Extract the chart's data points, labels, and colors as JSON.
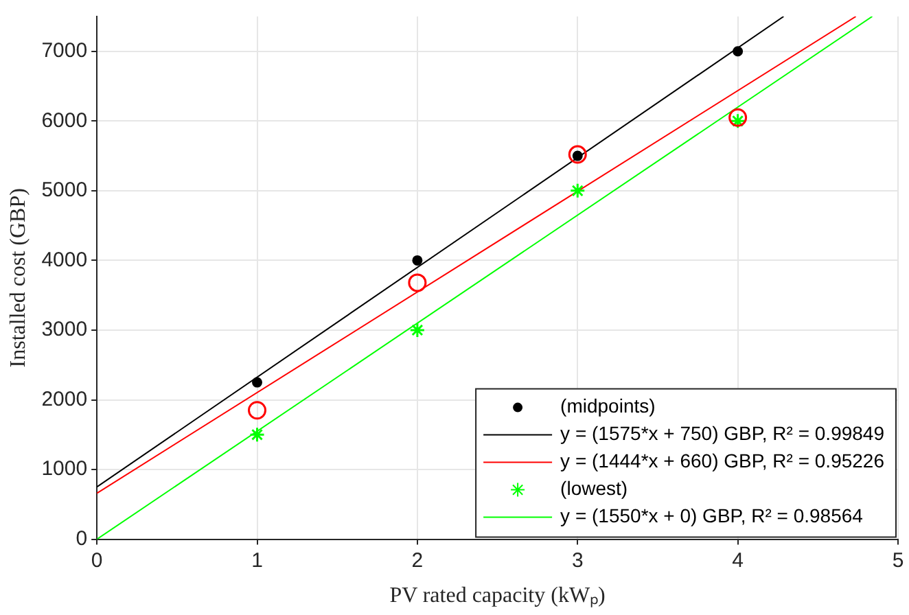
{
  "chart_data": {
    "type": "scatter",
    "xlabel": "PV rated capacity (kWₚ)",
    "ylabel": "Installed cost (GBP)",
    "xlim": [
      0,
      5
    ],
    "xticks": [
      0,
      1,
      2,
      3,
      4,
      5
    ],
    "ylim": [
      0,
      7500
    ],
    "yticks": [
      0,
      1000,
      2000,
      3000,
      4000,
      5000,
      6000,
      7000
    ],
    "grid": true,
    "legend": "bottom right",
    "series": [
      {
        "name": "(midpoints)",
        "marker": "circle",
        "color": "#000000",
        "x": [
          1,
          2,
          3,
          4
        ],
        "values": [
          2250,
          4000,
          5500,
          7000
        ]
      },
      {
        "name": "y = (1575*x + 750) GBP, R² = 0.99849",
        "type": "line",
        "marker": "none",
        "color": "#000000",
        "x": [
          0,
          4.286
        ],
        "values": [
          750,
          7500
        ]
      },
      {
        "marker": "circle",
        "color": "#ff0000",
        "x": [
          1,
          2,
          3,
          4
        ],
        "values": [
          1850,
          3680,
          5520,
          6050
        ]
      },
      {
        "name": "y = (1444*x + 660) GBP, R² = 0.95226",
        "type": "line",
        "marker": "none",
        "color": "#ff0000",
        "x": [
          0,
          4.737
        ],
        "values": [
          660,
          7500
        ]
      },
      {
        "name": "(lowest)",
        "marker": "cross",
        "color": "#00ff00",
        "x": [
          1,
          2,
          3,
          4
        ],
        "values": [
          1500,
          3000,
          5000,
          6000
        ]
      },
      {
        "name": "y = (1550*x + 0) GBP, R² = 0.98564",
        "type": "line",
        "marker": "none",
        "color": "#00ff00",
        "x": [
          0,
          4.839
        ],
        "values": [
          0,
          7500
        ]
      }
    ]
  }
}
